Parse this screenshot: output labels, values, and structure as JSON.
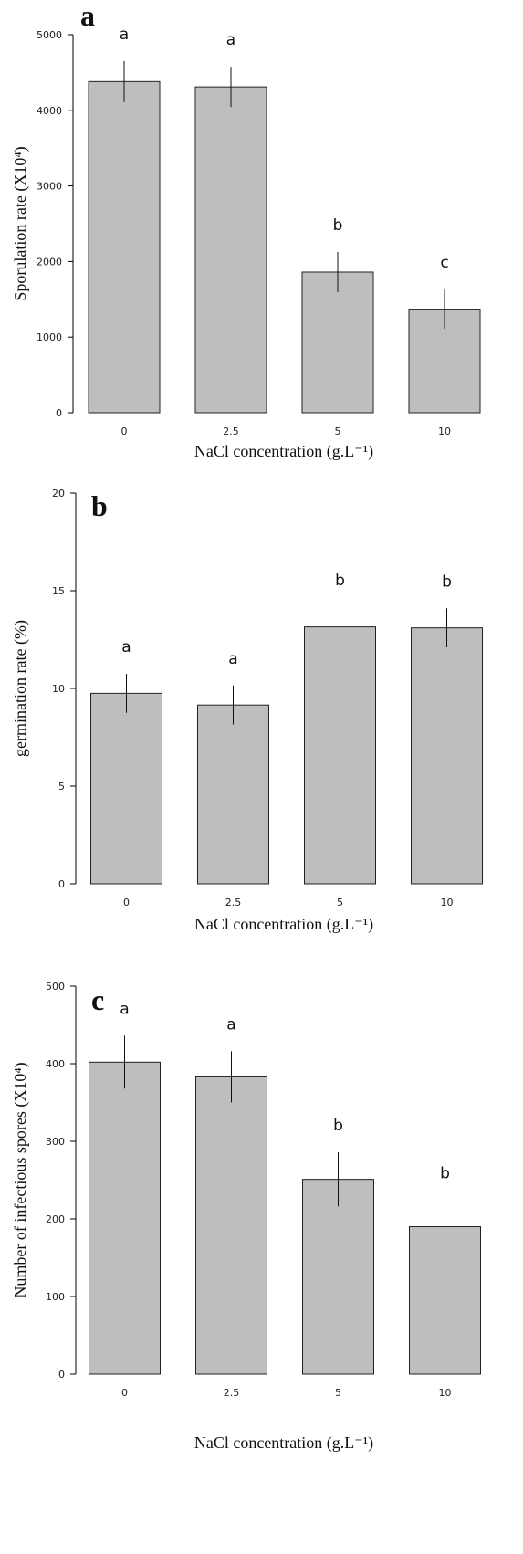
{
  "chart_data": [
    {
      "type": "bar",
      "panel_label": "a",
      "y_label": "Sporulation rate (X10⁴)",
      "x_label": "NaCl concentration  (g.L⁻¹)",
      "categories": [
        "0",
        "2.5",
        "5",
        "10"
      ],
      "values": [
        4380,
        4310,
        1860,
        1370
      ],
      "errors": [
        270,
        265,
        265,
        260
      ],
      "annotations": [
        "a",
        "a",
        "b",
        "c"
      ],
      "color": "#bebebe",
      "ylim": [
        0,
        5000
      ],
      "yticks": [
        0,
        1000,
        2000,
        3000,
        4000,
        5000
      ]
    },
    {
      "type": "bar",
      "panel_label": "b",
      "y_label": "germination rate  (%)",
      "x_label": "NaCl concentration  (g.L⁻¹)",
      "categories": [
        "0",
        "2.5",
        "5",
        "10"
      ],
      "values": [
        9.75,
        9.15,
        13.15,
        13.1
      ],
      "errors": [
        1.0,
        1.0,
        1.0,
        1.0
      ],
      "annotations": [
        "a",
        "a",
        "b",
        "b"
      ],
      "color": "#bebebe",
      "ylim": [
        0,
        20
      ],
      "yticks": [
        0,
        5,
        10,
        15,
        20
      ]
    },
    {
      "type": "bar",
      "panel_label": "c",
      "y_label": "Number of infectious  spores (X10⁴)",
      "x_label": "NaCl concentration  (g.L⁻¹)",
      "categories": [
        "0",
        "2.5",
        "5",
        "10"
      ],
      "values": [
        402,
        383,
        251,
        190
      ],
      "errors": [
        34,
        33,
        35,
        34
      ],
      "annotations": [
        "a",
        "a",
        "b",
        "b"
      ],
      "color": "#bebebe",
      "ylim": [
        0,
        500
      ],
      "yticks": [
        0,
        100,
        200,
        300,
        400,
        500
      ]
    }
  ]
}
